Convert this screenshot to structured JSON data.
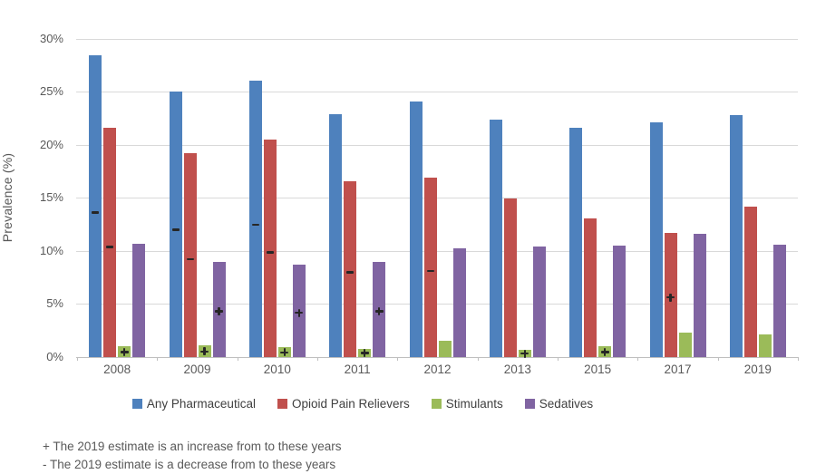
{
  "chart_data": {
    "type": "bar",
    "title": "",
    "ylabel": "Prevalence (%)",
    "xlabel": "",
    "ylim": [
      0,
      30
    ],
    "yticks_percent": [
      0,
      5,
      10,
      15,
      20,
      25,
      30
    ],
    "grid": true,
    "legend_position": "bottom",
    "categories": [
      "2008",
      "2009",
      "2010",
      "2011",
      "2012",
      "2013",
      "2015",
      "2017",
      "2019"
    ],
    "series": [
      {
        "name": "Any Pharmaceutical",
        "color": "#4E81BD",
        "values": [
          28.4,
          25.0,
          26.0,
          22.9,
          24.1,
          22.4,
          21.6,
          22.1,
          22.8
        ],
        "markers": [
          "-",
          "-",
          "-",
          "",
          "",
          "",
          "",
          "",
          ""
        ]
      },
      {
        "name": "Opioid Pain Relievers",
        "color": "#C0504D",
        "values": [
          21.6,
          19.2,
          20.5,
          16.6,
          16.9,
          14.9,
          13.1,
          11.7,
          14.2
        ],
        "markers": [
          "-",
          "-",
          "-",
          "-",
          "-",
          "",
          "",
          "+",
          ""
        ]
      },
      {
        "name": "Stimulants",
        "color": "#9BBB59",
        "values": [
          1.0,
          1.1,
          0.9,
          0.8,
          1.5,
          0.7,
          1.0,
          2.3,
          2.1
        ],
        "markers": [
          "+",
          "+",
          "+",
          "+",
          "",
          "+",
          "+",
          "",
          ""
        ]
      },
      {
        "name": "Sedatives",
        "color": "#8064A2",
        "values": [
          10.7,
          9.0,
          8.7,
          9.0,
          10.2,
          10.4,
          10.5,
          11.6,
          10.6
        ],
        "markers": [
          "",
          "+",
          "+",
          "+",
          "",
          "",
          "",
          "",
          ""
        ]
      }
    ],
    "footnotes": [
      "+ The 2019 estimate is an increase from to these years",
      "- The 2019 estimate is a decrease from to these years"
    ]
  }
}
